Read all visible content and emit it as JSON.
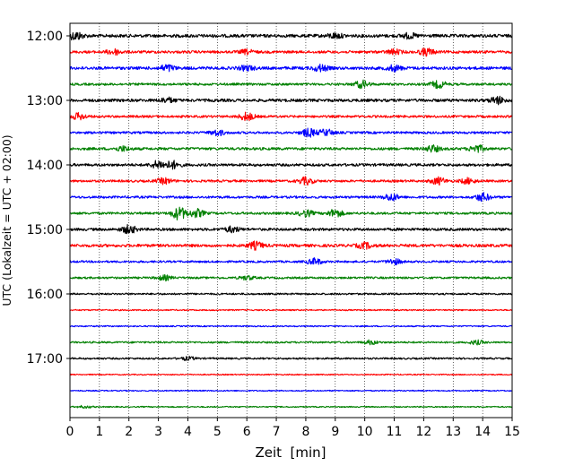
{
  "chart_data": {
    "type": "line",
    "xlabel": "Zeit  [min]",
    "ylabel": "UTC (Lokalzeit = UTC + 02:00)",
    "xlim": [
      0,
      15
    ],
    "x_ticks": [
      "0",
      "1",
      "2",
      "3",
      "4",
      "5",
      "6",
      "7",
      "8",
      "9",
      "10",
      "11",
      "12",
      "13",
      "14",
      "15"
    ],
    "y_tick_labels": [
      "12:00",
      "13:00",
      "14:00",
      "15:00",
      "16:00",
      "17:00"
    ],
    "y_tick_rows": [
      0,
      4,
      8,
      12,
      16,
      20
    ],
    "grid": "vertical dotted at each minute",
    "row_interval_minutes": 15,
    "row_colors": [
      "#000000",
      "#ff0000",
      "#0000ff",
      "#008000"
    ],
    "rows": [
      {
        "start": "12:00",
        "color": "#000000",
        "amplitude": 0.55,
        "bursts": [
          [
            0.2,
            1.0
          ],
          [
            9.0,
            0.6
          ],
          [
            11.5,
            0.6
          ]
        ]
      },
      {
        "start": "12:15",
        "color": "#ff0000",
        "amplitude": 0.45,
        "bursts": [
          [
            1.5,
            0.7
          ],
          [
            6.0,
            0.5
          ],
          [
            11.0,
            0.6
          ],
          [
            12.1,
            0.9
          ]
        ]
      },
      {
        "start": "12:30",
        "color": "#0000ff",
        "amplitude": 0.5,
        "bursts": [
          [
            3.3,
            0.8
          ],
          [
            6.0,
            0.6
          ],
          [
            8.5,
            0.8
          ],
          [
            11.0,
            0.7
          ]
        ]
      },
      {
        "start": "12:45",
        "color": "#008000",
        "amplitude": 0.4,
        "bursts": [
          [
            9.9,
            0.9
          ],
          [
            12.5,
            0.9
          ]
        ]
      },
      {
        "start": "13:00",
        "color": "#000000",
        "amplitude": 0.5,
        "bursts": [
          [
            3.3,
            0.6
          ],
          [
            14.5,
            0.9
          ]
        ]
      },
      {
        "start": "13:15",
        "color": "#ff0000",
        "amplitude": 0.4,
        "bursts": [
          [
            0.3,
            0.8
          ],
          [
            6.0,
            1.0
          ]
        ]
      },
      {
        "start": "13:30",
        "color": "#0000ff",
        "amplitude": 0.4,
        "bursts": [
          [
            5.0,
            0.7
          ],
          [
            8.1,
            1.0
          ],
          [
            8.7,
            0.8
          ]
        ]
      },
      {
        "start": "13:45",
        "color": "#008000",
        "amplitude": 0.45,
        "bursts": [
          [
            1.8,
            0.6
          ],
          [
            12.3,
            0.8
          ],
          [
            13.8,
            0.9
          ]
        ]
      },
      {
        "start": "14:00",
        "color": "#000000",
        "amplitude": 0.45,
        "bursts": [
          [
            3.0,
            1.0
          ],
          [
            3.5,
            0.9
          ]
        ]
      },
      {
        "start": "14:15",
        "color": "#ff0000",
        "amplitude": 0.4,
        "bursts": [
          [
            3.2,
            0.7
          ],
          [
            8.0,
            0.9
          ],
          [
            12.5,
            0.9
          ],
          [
            13.5,
            0.7
          ]
        ]
      },
      {
        "start": "14:30",
        "color": "#0000ff",
        "amplitude": 0.4,
        "bursts": [
          [
            10.9,
            0.9
          ],
          [
            14.0,
            1.0
          ]
        ]
      },
      {
        "start": "14:45",
        "color": "#008000",
        "amplitude": 0.4,
        "bursts": [
          [
            3.7,
            1.6
          ],
          [
            4.3,
            1.0
          ],
          [
            8.0,
            0.8
          ],
          [
            9.0,
            1.0
          ]
        ]
      },
      {
        "start": "15:00",
        "color": "#000000",
        "amplitude": 0.45,
        "bursts": [
          [
            2.0,
            1.0
          ],
          [
            5.5,
            0.7
          ]
        ]
      },
      {
        "start": "15:15",
        "color": "#ff0000",
        "amplitude": 0.5,
        "bursts": [
          [
            6.3,
            0.9
          ],
          [
            10.0,
            0.7
          ]
        ]
      },
      {
        "start": "15:30",
        "color": "#0000ff",
        "amplitude": 0.35,
        "bursts": [
          [
            8.3,
            0.8
          ],
          [
            11.0,
            0.7
          ]
        ]
      },
      {
        "start": "15:45",
        "color": "#008000",
        "amplitude": 0.35,
        "bursts": [
          [
            3.2,
            0.6
          ],
          [
            6.0,
            0.5
          ]
        ]
      },
      {
        "start": "16:00",
        "color": "#000000",
        "amplitude": 0.3,
        "bursts": []
      },
      {
        "start": "16:15",
        "color": "#ff0000",
        "amplitude": 0.22,
        "bursts": []
      },
      {
        "start": "16:30",
        "color": "#0000ff",
        "amplitude": 0.22,
        "bursts": []
      },
      {
        "start": "16:45",
        "color": "#008000",
        "amplitude": 0.3,
        "bursts": [
          [
            10.2,
            0.5
          ],
          [
            13.8,
            0.5
          ]
        ]
      },
      {
        "start": "17:00",
        "color": "#000000",
        "amplitude": 0.3,
        "bursts": [
          [
            4.0,
            0.4
          ]
        ]
      },
      {
        "start": "17:15",
        "color": "#ff0000",
        "amplitude": 0.2,
        "bursts": []
      },
      {
        "start": "17:30",
        "color": "#0000ff",
        "amplitude": 0.2,
        "bursts": []
      },
      {
        "start": "17:45",
        "color": "#008000",
        "amplitude": 0.2,
        "bursts": [
          [
            0.5,
            0.3
          ]
        ]
      }
    ]
  }
}
